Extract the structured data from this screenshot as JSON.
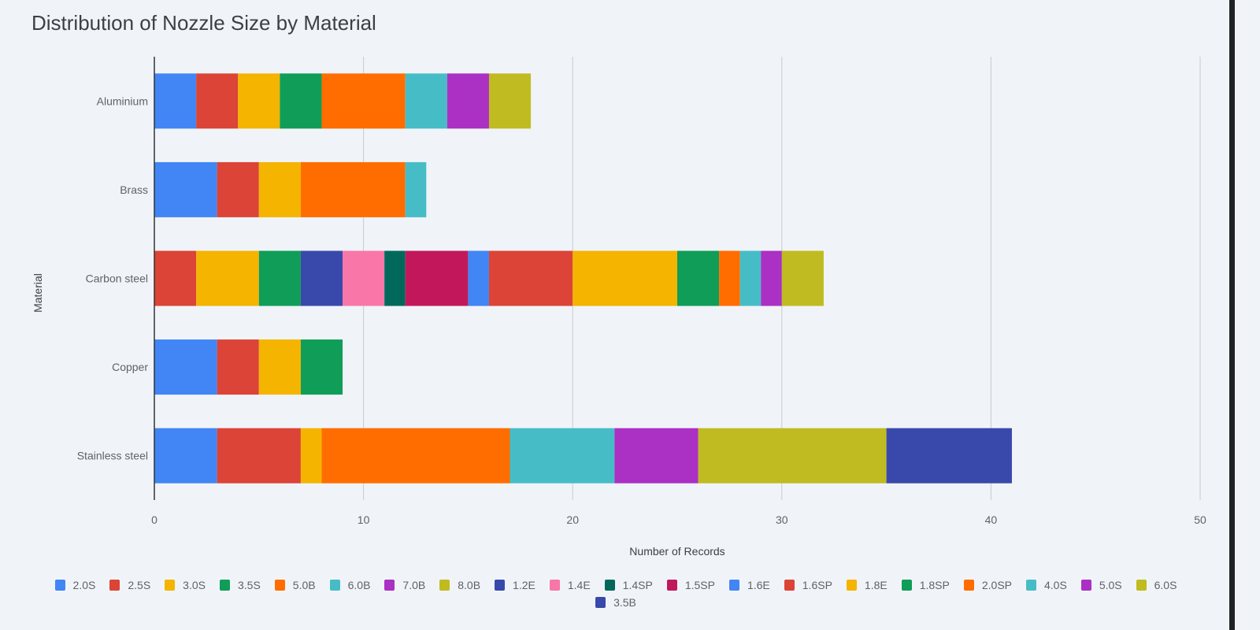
{
  "chart_data": {
    "type": "bar",
    "orientation": "horizontal",
    "stacked": true,
    "title": "Distribution of Nozzle Size by Material",
    "xlabel": "Number of Records",
    "ylabel": "Material",
    "xlim": [
      0,
      50
    ],
    "xticks": [
      0,
      10,
      20,
      30,
      40,
      50
    ],
    "grid": true,
    "legend": "bottom",
    "categories": [
      "Aluminium",
      "Brass",
      "Carbon steel",
      "Copper",
      "Stainless steel"
    ],
    "series": [
      {
        "name": "2.0S",
        "color": "#4285f4",
        "values": [
          2,
          3,
          0,
          3,
          3
        ]
      },
      {
        "name": "2.5S",
        "color": "#db4437",
        "values": [
          2,
          2,
          2,
          2,
          4
        ]
      },
      {
        "name": "3.0S",
        "color": "#f4b400",
        "values": [
          2,
          2,
          3,
          2,
          1
        ]
      },
      {
        "name": "3.5S",
        "color": "#0f9d58",
        "values": [
          2,
          0,
          2,
          2,
          0
        ]
      },
      {
        "name": "5.0B",
        "color": "#ff6d00",
        "values": [
          4,
          5,
          0,
          0,
          0
        ]
      },
      {
        "name": "6.0B",
        "color": "#46bdc6",
        "values": [
          2,
          1,
          0,
          0,
          0
        ]
      },
      {
        "name": "7.0B",
        "color": "#ab30c4",
        "values": [
          2,
          0,
          0,
          0,
          0
        ]
      },
      {
        "name": "8.0B",
        "color": "#c0bb20",
        "values": [
          2,
          0,
          0,
          0,
          0
        ]
      },
      {
        "name": "1.2E",
        "color": "#3949ab",
        "values": [
          0,
          0,
          2,
          0,
          0
        ]
      },
      {
        "name": "1.4E",
        "color": "#f877a8",
        "values": [
          0,
          0,
          2,
          0,
          0
        ]
      },
      {
        "name": "1.4SP",
        "color": "#00695c",
        "values": [
          0,
          0,
          1,
          0,
          0
        ]
      },
      {
        "name": "1.5SP",
        "color": "#c2185b",
        "values": [
          0,
          0,
          3,
          0,
          0
        ]
      },
      {
        "name": "1.6E",
        "color": "#4285f4",
        "values": [
          0,
          0,
          1,
          0,
          0
        ]
      },
      {
        "name": "1.6SP",
        "color": "#db4437",
        "values": [
          0,
          0,
          4,
          0,
          0
        ]
      },
      {
        "name": "1.8E",
        "color": "#f4b400",
        "values": [
          0,
          0,
          5,
          0,
          0
        ]
      },
      {
        "name": "1.8SP",
        "color": "#0f9d58",
        "values": [
          0,
          0,
          2,
          0,
          0
        ]
      },
      {
        "name": "2.0SP",
        "color": "#ff6d00",
        "values": [
          0,
          0,
          1,
          0,
          9
        ]
      },
      {
        "name": "4.0S",
        "color": "#46bdc6",
        "values": [
          0,
          0,
          1,
          0,
          5
        ]
      },
      {
        "name": "5.0S",
        "color": "#ab30c4",
        "values": [
          0,
          0,
          1,
          0,
          4
        ]
      },
      {
        "name": "6.0S",
        "color": "#c0bb20",
        "values": [
          0,
          0,
          2,
          0,
          9
        ]
      },
      {
        "name": "3.5B",
        "color": "#3949ab",
        "values": [
          0,
          0,
          0,
          0,
          6
        ]
      }
    ]
  }
}
